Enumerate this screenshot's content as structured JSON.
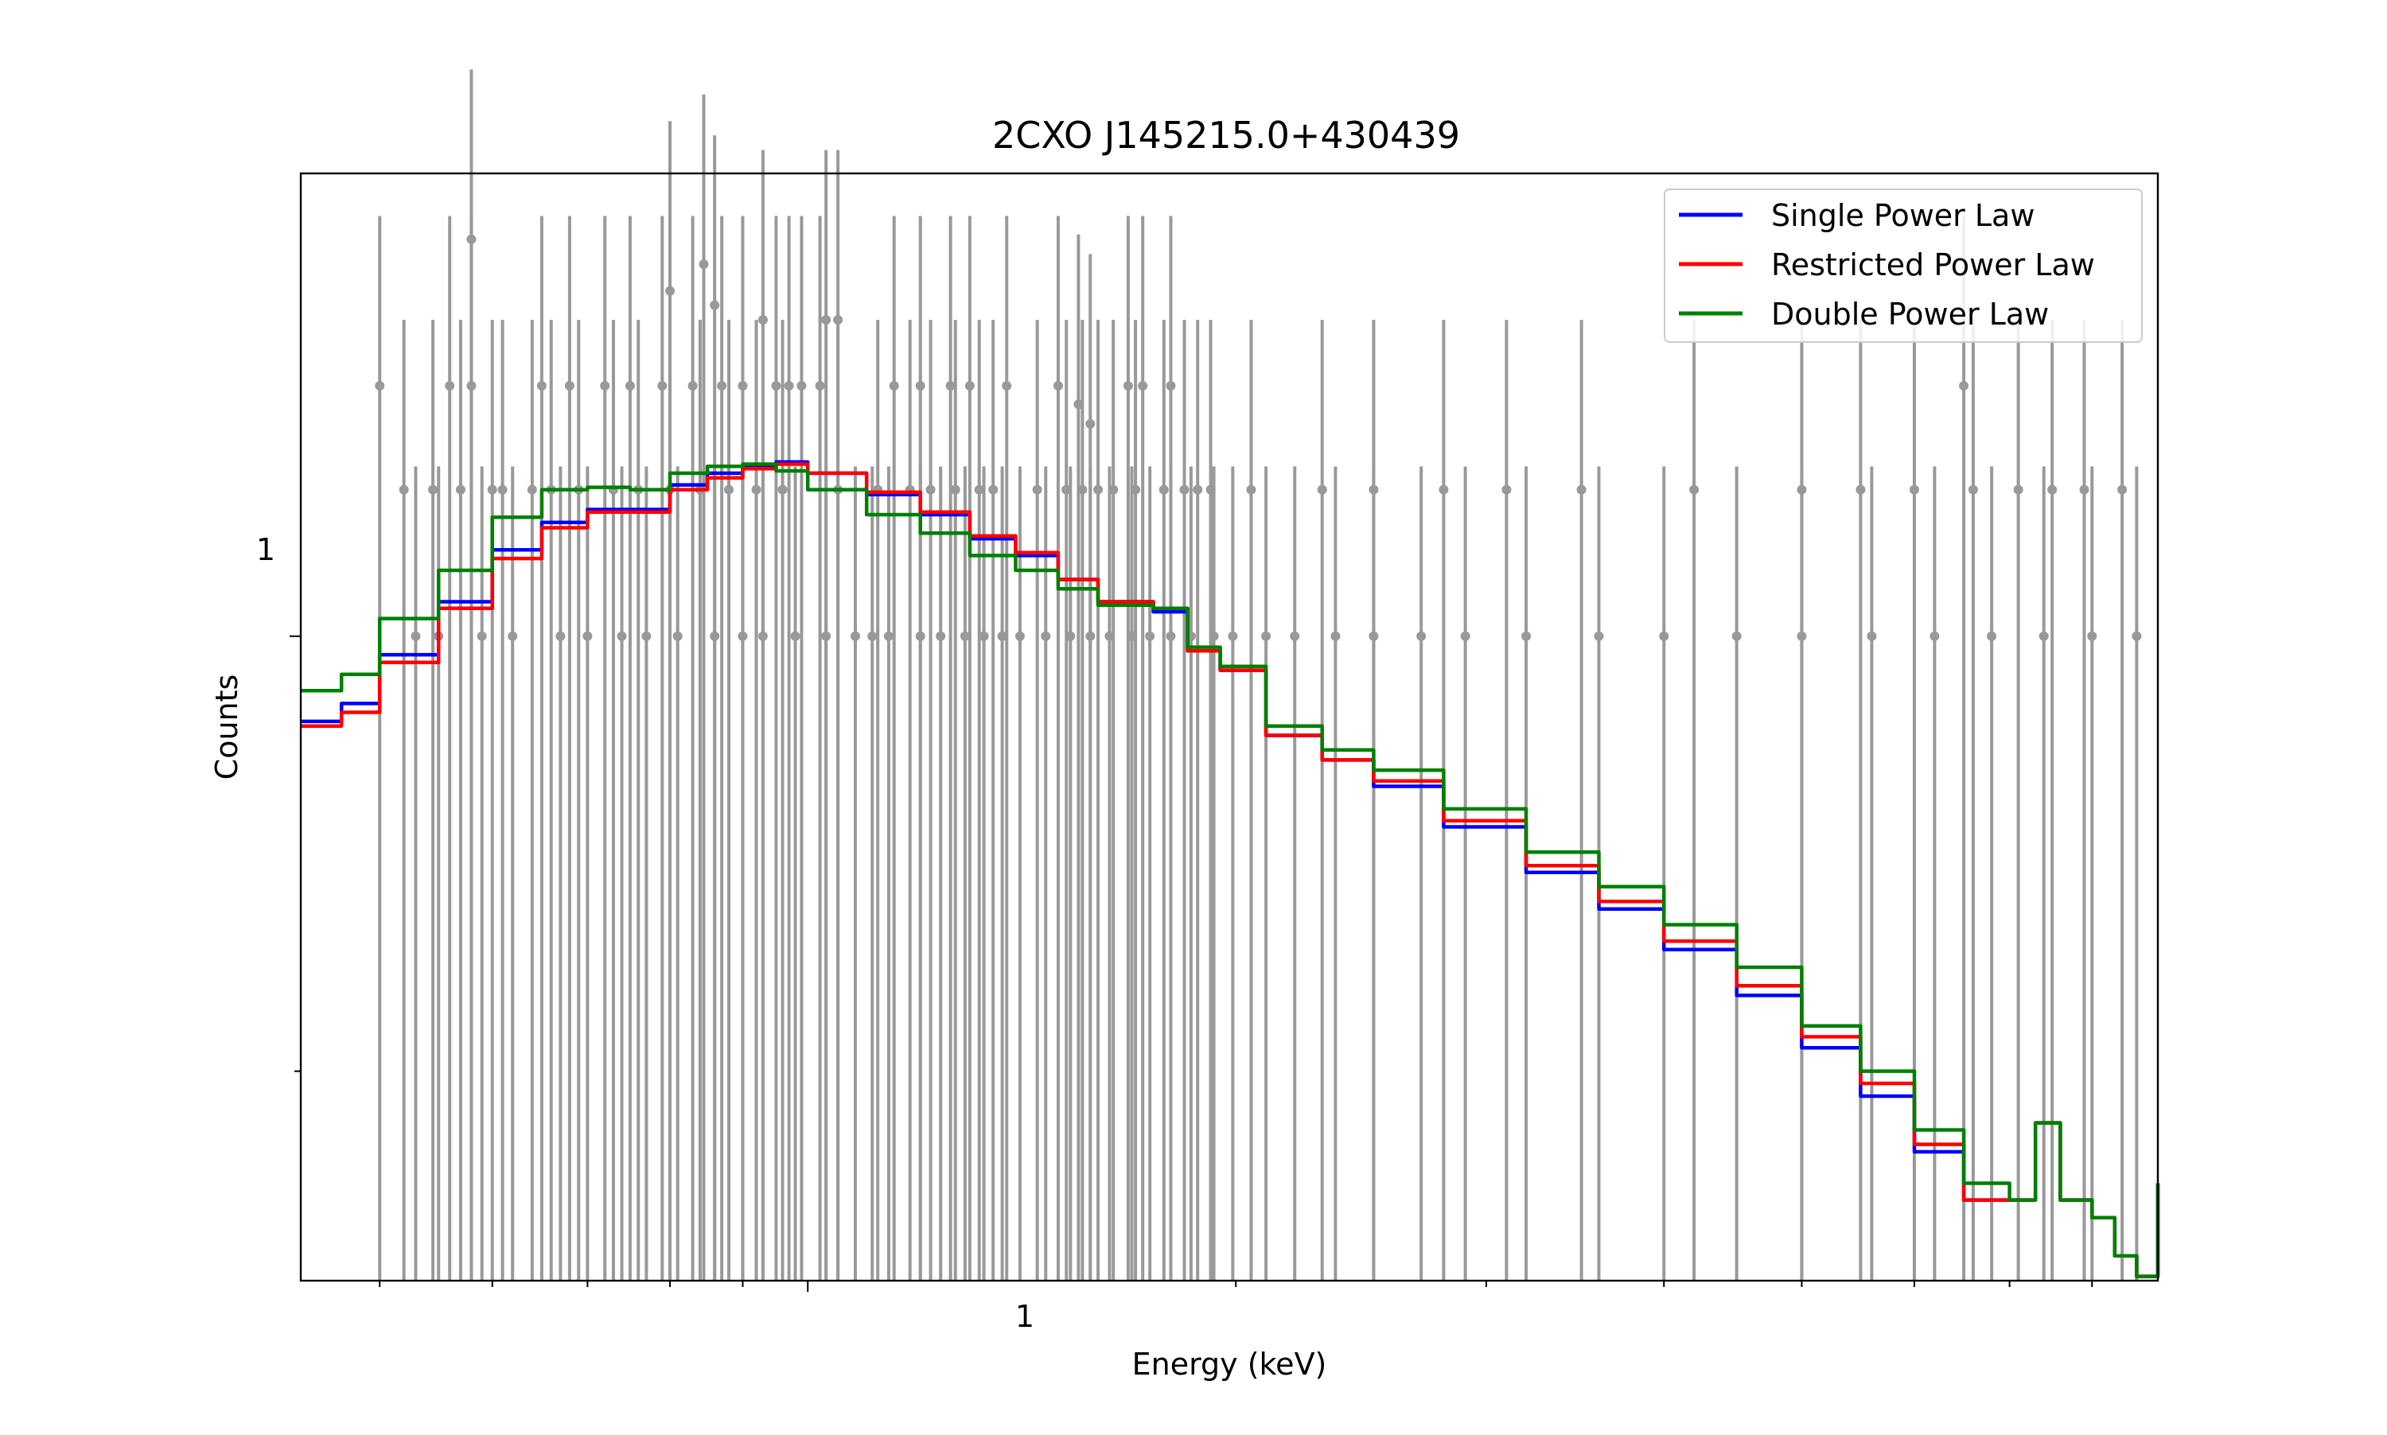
{
  "chart_data": {
    "type": "line",
    "title": "2CXO J145215.0+430439",
    "xlabel": "Energy (keV)",
    "ylabel": "Counts",
    "xscale": "log",
    "yscale": "log",
    "xlim": [
      0.44,
      8.9
    ],
    "ylim": [
      0.168,
      3.6
    ],
    "x_tick_labels": [
      "1"
    ],
    "y_tick_labels": [
      "1"
    ],
    "grid": false,
    "legend_position": "top-right",
    "observed": {
      "color": "#999999",
      "count_levels": [
        {
          "y": 2,
          "x": [
            0.5,
            0.56,
            0.58,
            0.65,
            0.68,
            0.72,
            0.75,
            0.79,
            0.83,
            0.87,
            0.9,
            0.95,
            0.97,
            0.99,
            1.02,
            1.15,
            1.26,
            1.3,
            1.38,
            1.5,
            1.68,
            1.72,
            1.8,
            6.5
          ]
        },
        {
          "y": 1.5,
          "x": [
            0.52,
            0.545,
            0.57,
            0.61,
            0.6,
            0.64,
            0.66,
            0.69,
            0.73,
            0.76,
            0.8,
            0.84,
            0.88,
            0.92,
            0.96,
            1.05,
            1.12,
            1.18,
            1.22,
            1.27,
            1.32,
            1.35,
            1.45,
            1.52,
            1.56,
            1.6,
            1.64,
            1.7,
            1.78,
            1.84,
            1.88,
            1.92,
            2.05,
            2.3,
            2.5,
            2.8,
            3.1,
            3.5,
            4.2,
            5.0,
            5.5,
            6.0,
            6.6,
            7.1,
            7.5,
            7.9,
            8.4
          ]
        },
        {
          "y": 1,
          "x": [
            0.53,
            0.55,
            0.59,
            0.62,
            0.67,
            0.7,
            0.74,
            0.77,
            0.81,
            0.86,
            0.9,
            0.93,
            0.98,
            1.03,
            1.08,
            1.11,
            1.14,
            1.2,
            1.24,
            1.29,
            1.33,
            1.37,
            1.41,
            1.47,
            1.53,
            1.58,
            1.63,
            1.69,
            1.74,
            1.8,
            1.86,
            1.93,
            1.99,
            2.1,
            2.2,
            2.35,
            2.5,
            2.7,
            2.9,
            3.2,
            3.6,
            4.0,
            4.5,
            5.0,
            5.6,
            6.2,
            6.8,
            7.4,
            8.0,
            8.6
          ]
        }
      ],
      "outliers": [
        {
          "x": 0.58,
          "y": 3.0
        },
        {
          "x": 0.8,
          "y": 2.6
        },
        {
          "x": 0.845,
          "y": 2.8
        },
        {
          "x": 0.86,
          "y": 2.5
        },
        {
          "x": 0.93,
          "y": 2.4
        },
        {
          "x": 1.03,
          "y": 2.4
        },
        {
          "x": 1.05,
          "y": 2.4
        },
        {
          "x": 1.2,
          "y": 2.0
        },
        {
          "x": 1.55,
          "y": 1.9
        },
        {
          "x": 1.58,
          "y": 1.8
        }
      ]
    },
    "series": [
      {
        "name": "Single Power Law",
        "color": "#0000ff",
        "x": [
          0.44,
          0.47,
          0.5,
          0.55,
          0.6,
          0.65,
          0.7,
          0.75,
          0.8,
          0.85,
          0.9,
          0.95,
          1.0,
          1.1,
          1.2,
          1.3,
          1.4,
          1.5,
          1.6,
          1.75,
          1.85,
          1.95,
          2.1,
          2.3,
          2.5,
          2.8,
          3.2,
          3.6,
          4.0,
          4.5,
          5.0,
          5.5,
          6.0,
          6.5,
          7.0,
          7.3,
          7.6,
          8.0,
          8.3,
          8.6,
          8.9
        ],
        "y": [
          0.79,
          0.83,
          0.95,
          1.1,
          1.27,
          1.37,
          1.42,
          1.42,
          1.52,
          1.57,
          1.6,
          1.62,
          1.57,
          1.48,
          1.4,
          1.31,
          1.25,
          1.17,
          1.1,
          1.07,
          0.96,
          0.91,
          0.76,
          0.71,
          0.66,
          0.59,
          0.52,
          0.47,
          0.42,
          0.37,
          0.32,
          0.28,
          0.24,
          0.21,
          0.21,
          0.26,
          0.21,
          0.2,
          0.18,
          0.17,
          0.22
        ]
      },
      {
        "name": "Restricted Power Law",
        "color": "#ff0000",
        "x": [
          0.44,
          0.47,
          0.5,
          0.55,
          0.6,
          0.65,
          0.7,
          0.75,
          0.8,
          0.85,
          0.9,
          0.95,
          1.0,
          1.1,
          1.2,
          1.3,
          1.4,
          1.5,
          1.6,
          1.75,
          1.85,
          1.95,
          2.1,
          2.3,
          2.5,
          2.8,
          3.2,
          3.6,
          4.0,
          4.5,
          5.0,
          5.5,
          6.0,
          6.5,
          7.0,
          7.3,
          7.6,
          8.0,
          8.3,
          8.6,
          8.9
        ],
        "y": [
          0.78,
          0.81,
          0.93,
          1.08,
          1.24,
          1.35,
          1.41,
          1.41,
          1.5,
          1.55,
          1.59,
          1.61,
          1.57,
          1.49,
          1.41,
          1.32,
          1.26,
          1.17,
          1.1,
          1.08,
          0.96,
          0.91,
          0.76,
          0.71,
          0.67,
          0.6,
          0.53,
          0.48,
          0.43,
          0.38,
          0.33,
          0.29,
          0.245,
          0.21,
          0.21,
          0.26,
          0.21,
          0.2,
          0.18,
          0.17,
          0.22
        ]
      },
      {
        "name": "Double Power Law",
        "color": "#008000",
        "x": [
          0.44,
          0.47,
          0.5,
          0.55,
          0.6,
          0.65,
          0.7,
          0.75,
          0.8,
          0.85,
          0.9,
          0.95,
          1.0,
          1.1,
          1.2,
          1.3,
          1.4,
          1.5,
          1.6,
          1.75,
          1.85,
          1.95,
          2.1,
          2.3,
          2.5,
          2.8,
          3.2,
          3.6,
          4.0,
          4.5,
          5.0,
          5.5,
          6.0,
          6.5,
          7.0,
          7.3,
          7.6,
          8.0,
          8.3,
          8.6,
          8.9
        ],
        "y": [
          0.86,
          0.9,
          1.05,
          1.2,
          1.39,
          1.5,
          1.51,
          1.5,
          1.57,
          1.6,
          1.61,
          1.58,
          1.5,
          1.4,
          1.33,
          1.25,
          1.2,
          1.14,
          1.09,
          1.08,
          0.97,
          0.92,
          0.78,
          0.73,
          0.69,
          0.62,
          0.55,
          0.5,
          0.45,
          0.4,
          0.34,
          0.3,
          0.255,
          0.22,
          0.21,
          0.26,
          0.21,
          0.2,
          0.18,
          0.17,
          0.22
        ]
      }
    ]
  }
}
